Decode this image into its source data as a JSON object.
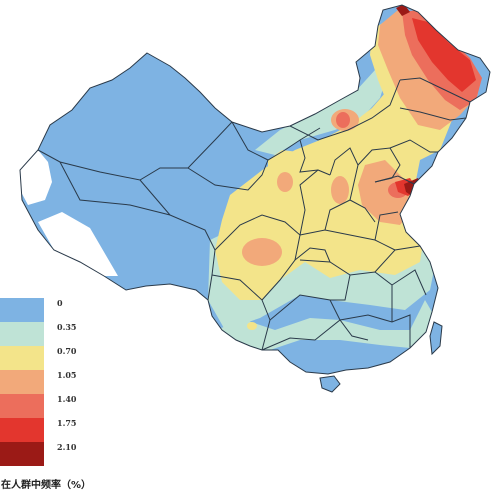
{
  "legend": {
    "title": "在人群中频率（%）",
    "classes": [
      {
        "label": "0",
        "color": "#7eb3e3"
      },
      {
        "label": "0.35",
        "color": "#bfe3d6"
      },
      {
        "label": "0.70",
        "color": "#f3e48a"
      },
      {
        "label": "1.05",
        "color": "#f2a97a"
      },
      {
        "label": "1.40",
        "color": "#ec6e5c"
      },
      {
        "label": "1.75",
        "color": "#e3362e"
      },
      {
        "label": "2.10",
        "color": "#9b1a16"
      }
    ]
  },
  "colors": {
    "background": "#ffffff",
    "unshaded": "#ffffff",
    "border": "#2a3a4a"
  }
}
